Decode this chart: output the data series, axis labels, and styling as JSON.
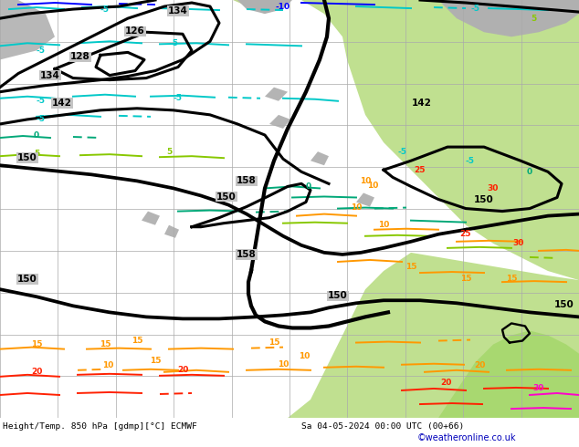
{
  "title_left": "Height/Temp. 850 hPa [gdmp][°C] ECMWF",
  "title_right": "Sa 04-05-2024 00:00 UTC (00+66)",
  "copyright": "©weatheronline.co.uk",
  "bg_ocean": "#c8d8c0",
  "bg_land_green": "#c8e8a0",
  "bg_land_grey": "#c0c0c0",
  "grid_color": "#aaaaaa",
  "black_contour_lw": 2.2,
  "temp_contour_lw": 1.4,
  "colors": {
    "cyan": "#00c8c8",
    "blue": "#0000ff",
    "teal": "#00a878",
    "green_yellow": "#88c800",
    "orange": "#ff9800",
    "red": "#ff2000",
    "magenta": "#ff00cc",
    "dark_teal": "#007878"
  }
}
